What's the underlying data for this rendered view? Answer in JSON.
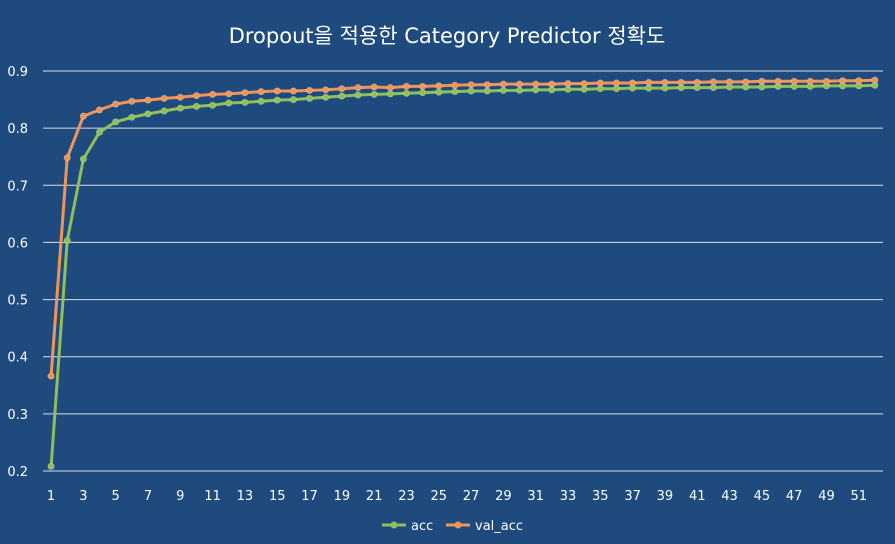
{
  "chart_data": {
    "type": "line",
    "title": "Dropout을 적용한 Category Predictor 정확도",
    "xlabel": "",
    "ylabel": "",
    "ylim": [
      0.2,
      0.9
    ],
    "yticks": [
      "0.2",
      "0.3",
      "0.4",
      "0.5",
      "0.6",
      "0.7",
      "0.8",
      "0.9"
    ],
    "xticks": [
      "1",
      "3",
      "5",
      "7",
      "9",
      "11",
      "13",
      "15",
      "17",
      "19",
      "21",
      "23",
      "25",
      "27",
      "29",
      "31",
      "33",
      "35",
      "37",
      "39",
      "41",
      "43",
      "45",
      "47",
      "49",
      "51"
    ],
    "x": [
      1,
      2,
      3,
      4,
      5,
      6,
      7,
      8,
      9,
      10,
      11,
      12,
      13,
      14,
      15,
      16,
      17,
      18,
      19,
      20,
      21,
      22,
      23,
      24,
      25,
      26,
      27,
      28,
      29,
      30,
      31,
      32,
      33,
      34,
      35,
      36,
      37,
      38,
      39,
      40,
      41,
      42,
      43,
      44,
      45,
      46,
      47,
      48,
      49,
      50,
      51,
      52
    ],
    "grid": true,
    "legend_position": "bottom",
    "series": [
      {
        "name": "acc",
        "color": "#8fbf5a",
        "values": [
          0.208,
          0.603,
          0.746,
          0.793,
          0.811,
          0.819,
          0.825,
          0.83,
          0.835,
          0.838,
          0.84,
          0.844,
          0.845,
          0.847,
          0.849,
          0.85,
          0.852,
          0.854,
          0.856,
          0.858,
          0.859,
          0.86,
          0.861,
          0.862,
          0.863,
          0.864,
          0.865,
          0.865,
          0.866,
          0.866,
          0.867,
          0.867,
          0.868,
          0.868,
          0.869,
          0.869,
          0.87,
          0.87,
          0.87,
          0.871,
          0.871,
          0.871,
          0.872,
          0.872,
          0.872,
          0.873,
          0.873,
          0.873,
          0.874,
          0.874,
          0.874,
          0.875
        ]
      },
      {
        "name": "val_acc",
        "color": "#f0955a",
        "values": [
          0.366,
          0.748,
          0.821,
          0.832,
          0.842,
          0.847,
          0.849,
          0.852,
          0.854,
          0.857,
          0.859,
          0.86,
          0.862,
          0.864,
          0.865,
          0.865,
          0.866,
          0.867,
          0.869,
          0.871,
          0.872,
          0.871,
          0.873,
          0.873,
          0.874,
          0.875,
          0.876,
          0.876,
          0.877,
          0.877,
          0.877,
          0.877,
          0.878,
          0.878,
          0.879,
          0.879,
          0.879,
          0.88,
          0.88,
          0.88,
          0.88,
          0.881,
          0.881,
          0.881,
          0.882,
          0.882,
          0.882,
          0.882,
          0.882,
          0.883,
          0.883,
          0.884
        ]
      }
    ]
  }
}
